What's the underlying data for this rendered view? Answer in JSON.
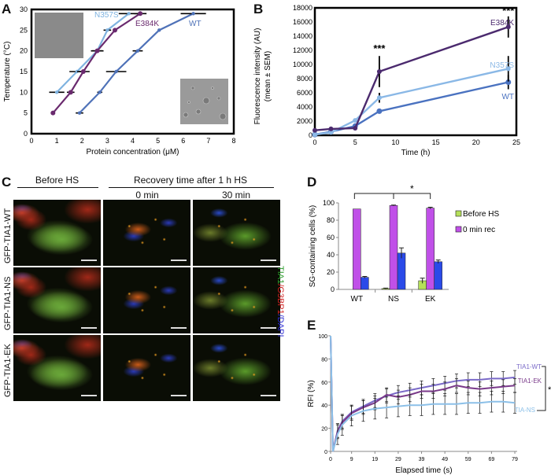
{
  "panels": {
    "A": "A",
    "B": "B",
    "C": "C",
    "D": "D",
    "E": "E"
  },
  "chart_data": [
    {
      "id": "A",
      "type": "line",
      "title": "",
      "xlabel": "Protein concentration (μM)",
      "ylabel": "Temperature (°C)",
      "xlim": [
        0,
        8
      ],
      "ylim": [
        0,
        30
      ],
      "xticks": [
        "0",
        "1",
        "2",
        "3",
        "4",
        "5",
        "6",
        "7",
        "8"
      ],
      "yticks": [
        "0",
        "5",
        "10",
        "15",
        "20",
        "25",
        "30"
      ],
      "grid": false,
      "series": [
        {
          "name": "N357S",
          "color": "#7fb3e0",
          "points": [
            [
              1.0,
              10
            ],
            [
              1.8,
              15
            ],
            [
              2.6,
              20
            ],
            [
              3.0,
              25
            ],
            [
              3.85,
              29
            ]
          ],
          "xerr": [
            0.3,
            0.3,
            0.25,
            0.15,
            0.4
          ]
        },
        {
          "name": "E384K",
          "color": "#6a2a6e",
          "points": [
            [
              0.85,
              5
            ],
            [
              1.55,
              10
            ],
            [
              2.05,
              15
            ],
            [
              2.6,
              20
            ],
            [
              3.3,
              25
            ],
            [
              4.3,
              29
            ]
          ],
          "xerr": [
            0,
            0.15,
            0.25,
            0.2,
            0,
            0.25
          ]
        },
        {
          "name": "WT",
          "color": "#4f72b8",
          "points": [
            [
              1.9,
              5
            ],
            [
              2.7,
              10
            ],
            [
              3.35,
              15
            ],
            [
              4.2,
              20
            ],
            [
              5.05,
              25
            ],
            [
              6.4,
              29
            ]
          ],
          "xerr": [
            0.15,
            0.1,
            0.4,
            0.2,
            0,
            0.5
          ]
        }
      ],
      "insets": [
        "uniform-gray-image",
        "droplet-micrograph"
      ]
    },
    {
      "id": "B",
      "type": "line",
      "title": "",
      "xlabel": "Time (h)",
      "ylabel": "Fluorescence intensity (AU)",
      "ylabel2": "(mean ± SEM)",
      "xlim": [
        0,
        25
      ],
      "ylim": [
        0,
        18000
      ],
      "xticks": [
        "0",
        "5",
        "10",
        "15",
        "20",
        "25"
      ],
      "yticks": [
        "0",
        "2000",
        "4000",
        "6000",
        "8000",
        "10000",
        "12000",
        "14000",
        "16000",
        "18000"
      ],
      "grid": false,
      "series": [
        {
          "name": "E384K",
          "color": "#4b2a6e",
          "x": [
            0,
            2,
            5,
            8,
            24
          ],
          "values": [
            700,
            900,
            1000,
            9000,
            15300
          ],
          "yerr": [
            0,
            0,
            0,
            2200,
            1500
          ]
        },
        {
          "name": "N357S",
          "color": "#8ab8e6",
          "x": [
            0,
            2,
            5,
            8,
            24
          ],
          "values": [
            100,
            400,
            2100,
            5300,
            9400
          ],
          "yerr": [
            0,
            0,
            0,
            700,
            1800
          ]
        },
        {
          "name": "WT",
          "color": "#4a72c0",
          "x": [
            0,
            2,
            5,
            8,
            24
          ],
          "values": [
            100,
            500,
            1300,
            3400,
            7500
          ],
          "yerr": [
            0,
            0,
            0,
            0,
            1000
          ]
        }
      ],
      "annotations": [
        {
          "x": 8,
          "text": "***"
        },
        {
          "x": 24,
          "text": "***"
        }
      ]
    },
    {
      "id": "D",
      "type": "bar",
      "title": "",
      "xlabel": "",
      "ylabel": "SG-containing cells (%)",
      "ylim": [
        0,
        100
      ],
      "yticks": [
        "0",
        "20",
        "40",
        "60",
        "80",
        "100"
      ],
      "categories": [
        "WT",
        "NS",
        "EK"
      ],
      "series": [
        {
          "name": "Before HS",
          "color": "#b5e05a",
          "values": [
            0,
            1,
            10
          ],
          "err": [
            0,
            0.5,
            3
          ]
        },
        {
          "name": "0 min rec",
          "color": "#c050e8",
          "values": [
            93,
            97,
            94
          ],
          "err": [
            0,
            0.5,
            1
          ]
        },
        {
          "name": "",
          "color": "#2a4ae8",
          "values": [
            14,
            42,
            32
          ],
          "err": [
            1,
            6,
            2
          ]
        }
      ],
      "legend": [
        "Before HS",
        "0 min rec"
      ],
      "annotation": "*"
    },
    {
      "id": "E",
      "type": "line",
      "title": "",
      "xlabel": "Elapsed time (s)",
      "ylabel": "RFI (%)",
      "xlim": [
        0,
        80
      ],
      "ylim": [
        0,
        100
      ],
      "xticks": [
        "0",
        "9",
        "19",
        "29",
        "39",
        "49",
        "59",
        "69",
        "79"
      ],
      "yticks": [
        "0",
        "20",
        "40",
        "60",
        "80",
        "100"
      ],
      "series": [
        {
          "name": "TIA1-WT",
          "color": "#7a6ac8",
          "x": [
            0,
            1,
            3,
            5,
            9,
            14,
            19,
            24,
            29,
            34,
            39,
            44,
            49,
            54,
            59,
            64,
            69,
            74,
            79
          ],
          "values": [
            100,
            0,
            18,
            26,
            34,
            39,
            44,
            48,
            51,
            53,
            55,
            57,
            59,
            61,
            62,
            62,
            63,
            63,
            64
          ]
        },
        {
          "name": "TIA1-EK",
          "color": "#7a3a8a",
          "x": [
            0,
            1,
            3,
            5,
            9,
            14,
            19,
            24,
            29,
            34,
            39,
            44,
            49,
            54,
            59,
            64,
            69,
            74,
            79
          ],
          "values": [
            100,
            0,
            17,
            25,
            33,
            38,
            42,
            49,
            47,
            49,
            52,
            52,
            54,
            57,
            55,
            54,
            55,
            56,
            57
          ]
        },
        {
          "name": "TIA-NS",
          "color": "#8cc0e8",
          "x": [
            0,
            1,
            3,
            5,
            9,
            14,
            19,
            24,
            29,
            34,
            39,
            44,
            49,
            54,
            59,
            64,
            69,
            74,
            79
          ],
          "values": [
            100,
            0,
            15,
            23,
            31,
            35,
            37,
            38,
            39,
            40,
            40,
            41,
            41,
            41,
            42,
            42,
            43,
            43,
            42
          ]
        }
      ],
      "annotation": "*"
    }
  ],
  "panelC": {
    "header_before": "Before HS",
    "header_recovery": "Recovery time after 1 h HS",
    "col_0min": "0 min",
    "col_30min": "30 min",
    "rows": [
      "GFP-TIA1-WT",
      "GFP-TIA1-NS",
      "GFP-TIA1-EK"
    ],
    "stain_label_parts": [
      "TIA1",
      "/G3BP1",
      "/DAPI"
    ],
    "stain_colors": [
      "#2a9a2a",
      "#d02020",
      "#2a2ad0"
    ]
  }
}
